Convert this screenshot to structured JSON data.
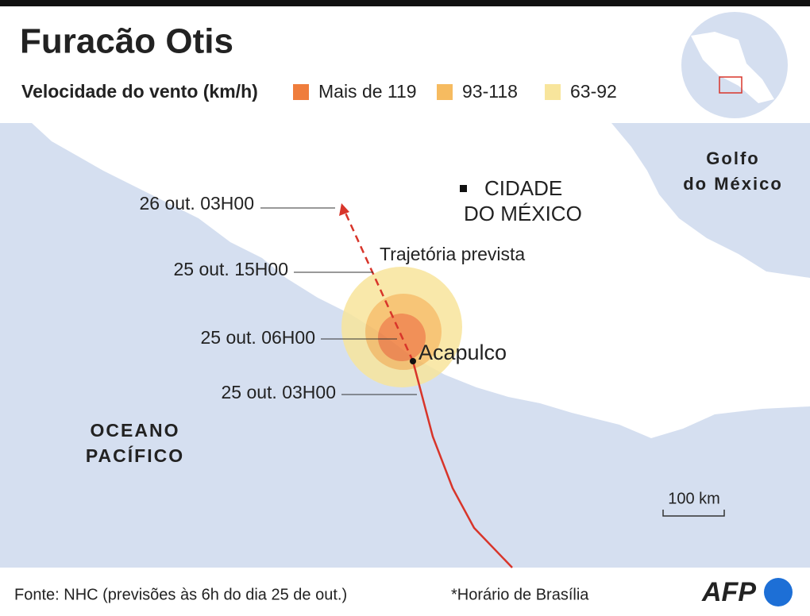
{
  "header": {
    "title": "Furacão Otis",
    "legend_title": "Velocidade do vento (km/h)",
    "legend": [
      {
        "label": "Mais de 119",
        "color": "#ef7d3c"
      },
      {
        "label": "93-118",
        "color": "#f6bb60"
      },
      {
        "label": "63-92",
        "color": "#f8e59c"
      }
    ]
  },
  "map": {
    "ocean": [
      "OCEANO",
      "PACÍFICO"
    ],
    "gulf": [
      "Golfo",
      "do México"
    ],
    "capital": [
      "CIDADE",
      "DO MÉXICO"
    ],
    "city": "Acapulco",
    "track_label": "Trajetória prevista",
    "times": [
      "26 out. 03H00",
      "25 out. 15H00",
      "25 out. 06H00",
      "25 out. 03H00"
    ],
    "scale": "100 km"
  },
  "footer": {
    "source": "Fonte: NHC (previsões às 6h do dia 25 de out.)",
    "note": "*Horário de Brasília",
    "logo": "AFP"
  }
}
